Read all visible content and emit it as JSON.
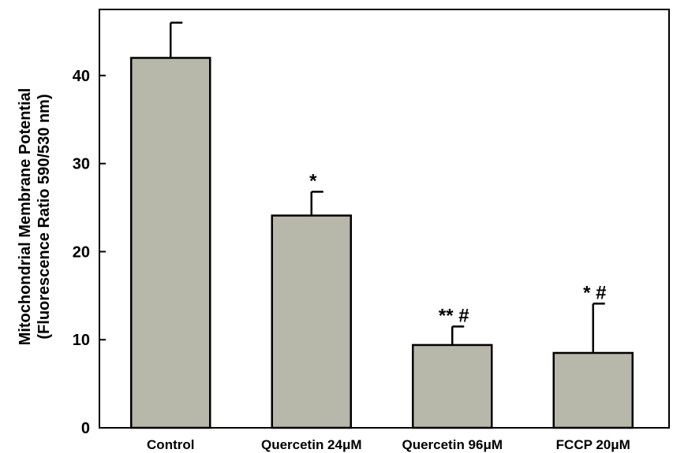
{
  "chart_data": {
    "type": "bar",
    "categories": [
      "Control",
      "Quercetin 24μM",
      "Quercetin 96μM",
      "FCCP 20μM"
    ],
    "values": [
      42.0,
      24.1,
      9.4,
      8.5
    ],
    "errors": [
      4.0,
      2.7,
      2.1,
      5.6
    ],
    "annotations": [
      "",
      "*",
      "** #",
      "* #"
    ],
    "ylabel": [
      "Mitochondrial Membrane Potential",
      "(Fluorescence Ratio 590/530 nm)"
    ],
    "ylim": [
      0,
      47.5
    ],
    "yticks": [
      0,
      10,
      20,
      30,
      40
    ],
    "bar_color": "#b7b7aa",
    "grid": false
  }
}
